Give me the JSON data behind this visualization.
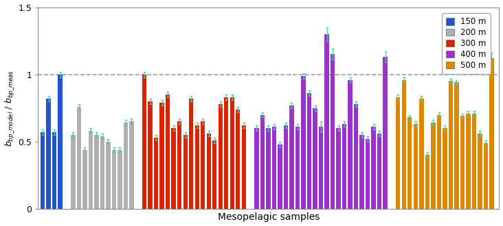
{
  "title": "",
  "xlabel": "Mesopelagic samples",
  "ylabel": "b$_{bp\\_model}$ / b$_{bp\\_meas}$",
  "ylim": [
    0,
    1.5
  ],
  "yticks": [
    0,
    0.5,
    1.0,
    1.5
  ],
  "dashed_line": 1.0,
  "colors": {
    "150m": "#2255cc",
    "200m": "#b0b0b0",
    "300m": "#dd2200",
    "400m": "#9933cc",
    "500m": "#dd8800"
  },
  "legend_labels": [
    "150 m",
    "200 m",
    "300 m",
    "400 m",
    "500 m"
  ],
  "groups": {
    "150m": {
      "values": [
        0.57,
        0.82,
        0.57,
        1.0
      ],
      "errors": [
        0.02,
        0.02,
        0.02,
        0.02
      ]
    },
    "200m": {
      "values": [
        0.55,
        0.76,
        0.44,
        0.58,
        0.55,
        0.54,
        0.5,
        0.44,
        0.44,
        0.64,
        0.65
      ],
      "errors": [
        0.02,
        0.02,
        0.02,
        0.02,
        0.02,
        0.02,
        0.02,
        0.02,
        0.02,
        0.02,
        0.02
      ]
    },
    "300m": {
      "values": [
        1.0,
        0.8,
        0.53,
        0.79,
        0.85,
        0.6,
        0.65,
        0.55,
        0.82,
        0.62,
        0.65,
        0.56,
        0.51,
        0.78,
        0.83,
        0.83,
        0.74,
        0.62
      ],
      "errors": [
        0.02,
        0.02,
        0.02,
        0.02,
        0.02,
        0.02,
        0.02,
        0.02,
        0.02,
        0.02,
        0.02,
        0.02,
        0.02,
        0.02,
        0.02,
        0.02,
        0.02,
        0.02
      ]
    },
    "400m": {
      "values": [
        0.6,
        0.7,
        0.6,
        0.61,
        0.48,
        0.62,
        0.77,
        0.61,
        0.99,
        0.86,
        0.75,
        0.61,
        1.3,
        1.15,
        0.6,
        0.63,
        0.96,
        0.78,
        0.55,
        0.52,
        0.61,
        0.56,
        1.13
      ],
      "errors": [
        0.02,
        0.02,
        0.02,
        0.02,
        0.02,
        0.02,
        0.02,
        0.02,
        0.02,
        0.02,
        0.02,
        0.04,
        0.05,
        0.04,
        0.02,
        0.02,
        0.02,
        0.02,
        0.02,
        0.02,
        0.02,
        0.02,
        0.04
      ]
    },
    "500m": {
      "values": [
        0.83,
        0.96,
        0.68,
        0.63,
        0.82,
        0.4,
        0.64,
        0.7,
        0.6,
        0.95,
        0.94,
        0.69,
        0.71,
        0.71,
        0.56,
        0.49,
        1.12
      ],
      "errors": [
        0.02,
        0.02,
        0.02,
        0.02,
        0.02,
        0.02,
        0.02,
        0.02,
        0.02,
        0.02,
        0.02,
        0.02,
        0.02,
        0.02,
        0.02,
        0.02,
        0.04
      ]
    }
  },
  "error_color": "#44ccaa",
  "background_color": "#ffffff",
  "spine_color": "#888888"
}
